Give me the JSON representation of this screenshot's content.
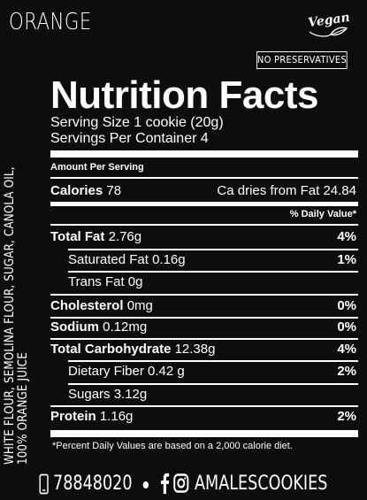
{
  "header": {
    "flavor": "ORANGE",
    "vegan_label": "Vegan",
    "no_preservatives": "NO PRESERVATIVES"
  },
  "ingredients": {
    "line1": "WHITE FLOUR, SEMOLINA FLOUR, SUGAR, CANOLA OIL,",
    "line2": "100% ORANGE JUICE"
  },
  "nutrition": {
    "title": "Nutrition Facts",
    "serving_size": "Serving Size 1 cookie (20g)",
    "servings_per_container": "Servings Per Container 4",
    "amount_per_serving": "Amount Per Serving",
    "calories_label": "Calories",
    "calories_value": "78",
    "calories_from_fat": "Ca dries from Fat 24.84",
    "daily_value_header": "% Daily Value*",
    "rows": [
      {
        "label": "Total Fat",
        "value": "2.76g",
        "pct": "4%"
      },
      {
        "label": "Saturated Fat",
        "value": "0.16g",
        "pct": "1%"
      },
      {
        "label": "Trans Fat",
        "value": "0g",
        "pct": ""
      },
      {
        "label": "Cholesterol",
        "value": "0mg",
        "pct": "0%"
      },
      {
        "label": "Sodium",
        "value": "0.12mg",
        "pct": "0%"
      },
      {
        "label": "Total Carbohydrate",
        "value": "12.38g",
        "pct": "4%"
      },
      {
        "label": "Dietary Fiber",
        "value": "0.42 g",
        "pct": "2%"
      },
      {
        "label": "Sugars",
        "value": "3.12g",
        "pct": ""
      },
      {
        "label": "Protein",
        "value": "1.16g",
        "pct": "2%"
      }
    ],
    "footnote": "*Percent Daily Values are based on a 2,000 calorie diet."
  },
  "footer": {
    "phone": "78848020",
    "handle": "AMALESCOOKIES",
    "icons": [
      "phone-icon",
      "facebook-icon",
      "instagram-icon"
    ]
  }
}
